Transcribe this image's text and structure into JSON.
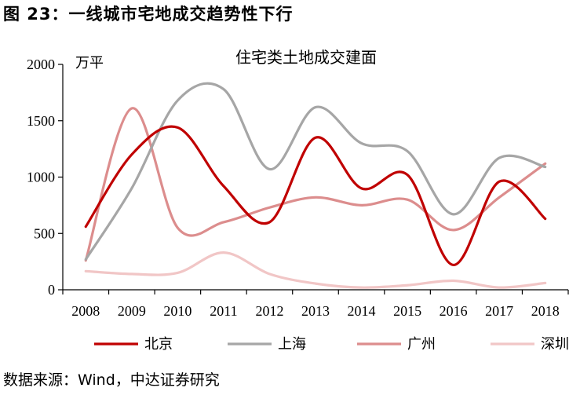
{
  "figure_title": "图 23：一线城市宅地成交趋势性下行",
  "source_note": "数据来源：Wind，中达证券研究",
  "chart_data": {
    "type": "line",
    "title": "住宅类土地成交建面",
    "ylabel": "万平",
    "xlabel": "",
    "categories": [
      "2008",
      "2009",
      "2010",
      "2011",
      "2012",
      "2013",
      "2014",
      "2015",
      "2016",
      "2017",
      "2018"
    ],
    "ylim": [
      0,
      2000
    ],
    "yticks": [
      0,
      500,
      1000,
      1500,
      2000
    ],
    "legend_position": "bottom",
    "smooth": true,
    "series": [
      {
        "name": "北京",
        "color": "#c00000",
        "values": [
          560,
          1200,
          1440,
          920,
          600,
          1350,
          900,
          1020,
          220,
          960,
          630
        ]
      },
      {
        "name": "上海",
        "color": "#a6a6a6",
        "values": [
          270,
          900,
          1680,
          1780,
          1070,
          1620,
          1300,
          1230,
          670,
          1170,
          1090
        ]
      },
      {
        "name": "广州",
        "color": "#dc8d8d",
        "values": [
          260,
          1610,
          550,
          600,
          730,
          820,
          750,
          800,
          530,
          820,
          1120
        ]
      },
      {
        "name": "深圳",
        "color": "#f1c6c6",
        "values": [
          165,
          140,
          150,
          330,
          140,
          55,
          20,
          40,
          80,
          20,
          60
        ]
      }
    ]
  }
}
